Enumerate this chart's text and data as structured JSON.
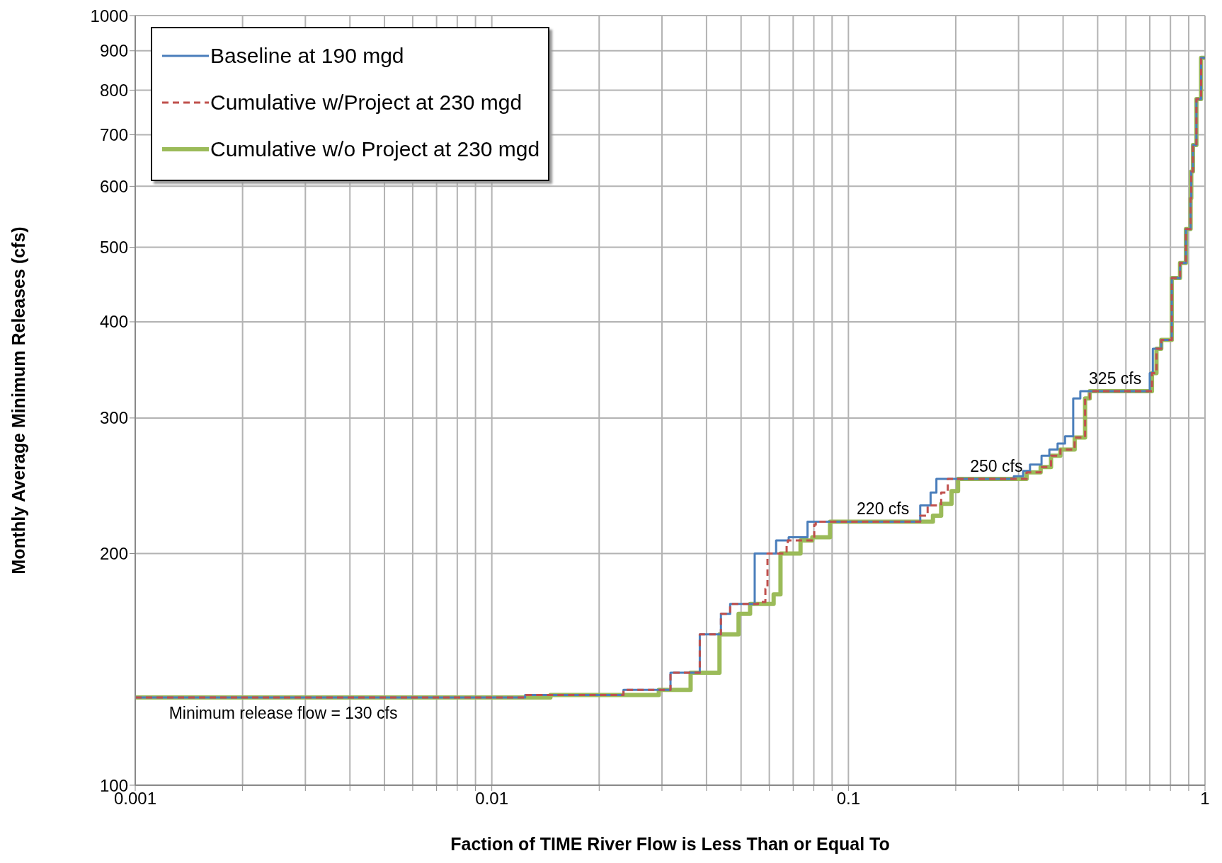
{
  "chart_data": {
    "type": "step",
    "xlabel": "Faction of TIME River Flow is Less Than or Equal To",
    "ylabel": "Monthly Average Minimum Releases (cfs)",
    "series": [
      {
        "name": "Baseline at 190 mgd",
        "color": "#4a7ebb",
        "line_style": "solid",
        "x": [
          0.001,
          0.0124,
          0.0234,
          0.0317,
          0.0383,
          0.0439,
          0.0466,
          0.0546,
          0.0627,
          0.068,
          0.0768,
          0.159,
          0.17,
          0.1765,
          0.291,
          0.309,
          0.323,
          0.348,
          0.366,
          0.386,
          0.405,
          0.427,
          0.447,
          0.7,
          0.714,
          0.754,
          0.807,
          0.851,
          0.884,
          0.911,
          0.915,
          0.925,
          0.946,
          0.975,
          1
        ],
        "values": [
          130,
          131,
          133,
          140,
          157,
          167,
          172,
          200,
          208,
          210,
          220,
          231,
          240,
          250,
          252,
          256,
          261,
          268,
          273,
          278,
          284,
          318,
          325,
          343,
          369,
          379,
          456,
          477,
          528,
          579,
          627,
          679,
          779,
          881,
          881
        ]
      },
      {
        "name": "Cumulative w/Project at 230 mgd",
        "color": "#c0504d",
        "line_style": "dashed",
        "x": [
          0.001,
          0.0124,
          0.0234,
          0.0317,
          0.0383,
          0.0439,
          0.0466,
          0.0558,
          0.0585,
          0.0593,
          0.0671,
          0.0676,
          0.0802,
          0.081,
          0.159,
          0.1668,
          0.182,
          0.19,
          0.316,
          0.346,
          0.37,
          0.393,
          0.431,
          0.461,
          0.475,
          0.71,
          0.731,
          0.754,
          0.807,
          0.851,
          0.884,
          0.911,
          0.915,
          0.925,
          0.946,
          0.975,
          1
        ],
        "values": [
          130,
          131,
          133,
          140,
          157,
          167,
          172,
          173,
          180,
          200,
          206,
          208,
          218,
          220,
          224,
          231,
          240,
          250,
          255,
          259,
          268,
          273,
          283,
          318,
          325,
          343,
          369,
          379,
          456,
          477,
          528,
          579,
          627,
          679,
          779,
          881,
          881
        ]
      },
      {
        "name": "Cumulative w/o Project at 230 mgd",
        "color": "#9bbb59",
        "line_style": "solid",
        "x": [
          0.001,
          0.0146,
          0.0294,
          0.0361,
          0.0435,
          0.0492,
          0.053,
          0.0617,
          0.0645,
          0.0734,
          0.0792,
          0.0888,
          0.1726,
          0.182,
          0.1946,
          0.203,
          0.316,
          0.346,
          0.37,
          0.393,
          0.431,
          0.461,
          0.475,
          0.71,
          0.731,
          0.754,
          0.807,
          0.851,
          0.884,
          0.911,
          0.915,
          0.925,
          0.946,
          0.975,
          1
        ],
        "values": [
          130,
          131,
          133,
          140,
          157,
          167,
          172,
          177,
          200,
          208,
          210,
          220,
          224,
          232,
          241,
          250,
          255,
          259,
          268,
          273,
          283,
          318,
          325,
          343,
          369,
          379,
          456,
          477,
          528,
          579,
          627,
          679,
          779,
          881,
          881
        ]
      }
    ],
    "log": "xy",
    "xlim": [
      0.001,
      1
    ],
    "xticks": [
      {
        "value": 0.001,
        "label": "0.001"
      },
      {
        "value": 0.002,
        "label": null
      },
      {
        "value": 0.003,
        "label": null
      },
      {
        "value": 0.004,
        "label": null
      },
      {
        "value": 0.005,
        "label": null
      },
      {
        "value": 0.006,
        "label": null
      },
      {
        "value": 0.007,
        "label": null
      },
      {
        "value": 0.008,
        "label": null
      },
      {
        "value": 0.009,
        "label": null
      },
      {
        "value": 0.01,
        "label": "0.01"
      },
      {
        "value": 0.02,
        "label": null
      },
      {
        "value": 0.03,
        "label": null
      },
      {
        "value": 0.04,
        "label": null
      },
      {
        "value": 0.05,
        "label": null
      },
      {
        "value": 0.06,
        "label": null
      },
      {
        "value": 0.07,
        "label": null
      },
      {
        "value": 0.08,
        "label": null
      },
      {
        "value": 0.09,
        "label": null
      },
      {
        "value": 0.1,
        "label": "0.1"
      },
      {
        "value": 0.2,
        "label": null
      },
      {
        "value": 0.3,
        "label": null
      },
      {
        "value": 0.4,
        "label": null
      },
      {
        "value": 0.5,
        "label": null
      },
      {
        "value": 0.6,
        "label": null
      },
      {
        "value": 0.7,
        "label": null
      },
      {
        "value": 0.8,
        "label": null
      },
      {
        "value": 0.9,
        "label": null
      },
      1
    ],
    "ylim": [
      100,
      1000
    ],
    "yticks": [
      100,
      200,
      300,
      400,
      500,
      600,
      700,
      800,
      900,
      1000
    ],
    "grid": true,
    "legend": "top left",
    "annotations": [
      {
        "text": "Minimum release flow = 130 cfs",
        "x": 0.0026,
        "y": 130
      },
      {
        "text": "220 cfs",
        "x": 0.125,
        "y": 220
      },
      {
        "text": "250 cfs",
        "x": 0.26,
        "y": 250
      },
      {
        "text": "325 cfs",
        "x": 0.56,
        "y": 325
      }
    ]
  }
}
